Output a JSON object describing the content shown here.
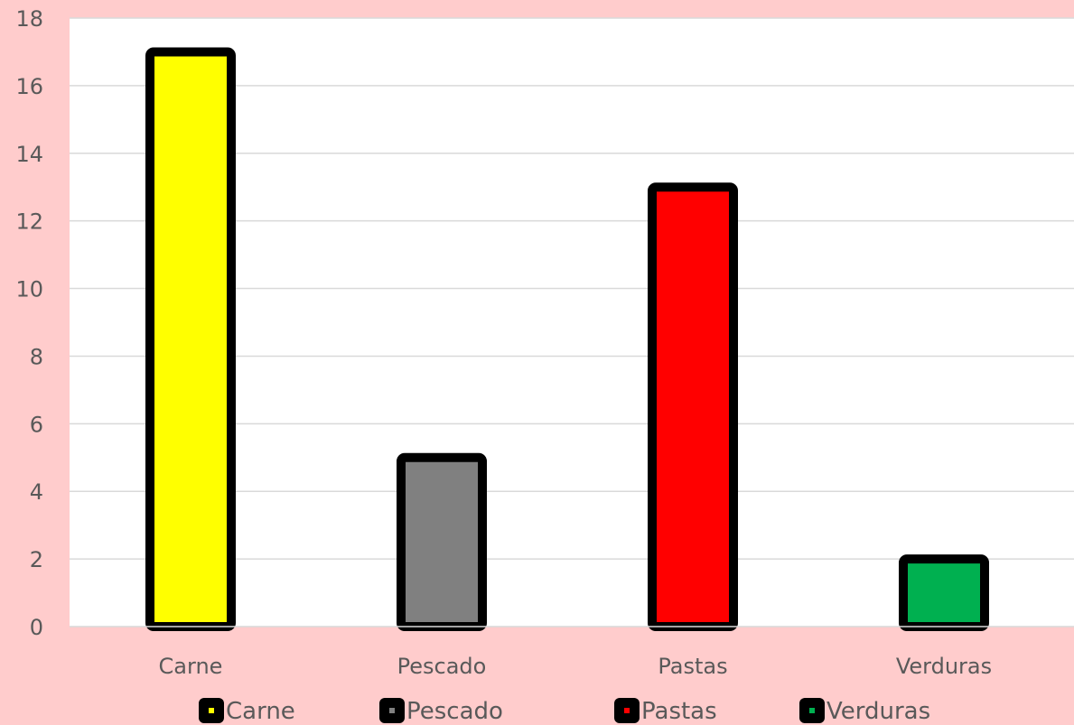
{
  "chart_data": {
    "type": "bar",
    "title": "",
    "xlabel": "",
    "ylabel": "",
    "categories": [
      "Carne",
      "Pescado",
      "Pastas",
      "Verduras"
    ],
    "values": [
      17,
      5,
      13,
      2
    ],
    "colors": [
      "#FFFF00",
      "#808080",
      "#FF0000",
      "#00B050"
    ],
    "ylim": [
      0,
      18
    ],
    "yticks": [
      "0",
      "2",
      "4",
      "6",
      "8",
      "10",
      "12",
      "14",
      "16",
      "18"
    ],
    "grid": true,
    "legend": {
      "placement": "bottom",
      "entries": [
        "Carne",
        "Pescado",
        "Pastas",
        "Verduras"
      ]
    },
    "bar_border_color": "#000000",
    "plot_background": "#FFFFFF",
    "page_background": "#FFCCCC"
  }
}
